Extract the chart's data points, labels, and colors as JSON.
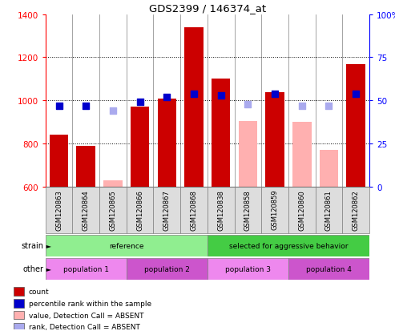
{
  "title": "GDS2399 / 146374_at",
  "samples": [
    "GSM120863",
    "GSM120864",
    "GSM120865",
    "GSM120866",
    "GSM120867",
    "GSM120868",
    "GSM120838",
    "GSM120858",
    "GSM120859",
    "GSM120860",
    "GSM120861",
    "GSM120862"
  ],
  "bar_values": [
    840,
    790,
    null,
    970,
    1010,
    1340,
    1100,
    null,
    1040,
    null,
    null,
    1170
  ],
  "bar_values_absent": [
    null,
    null,
    630,
    null,
    null,
    null,
    null,
    905,
    null,
    900,
    770,
    null
  ],
  "rank_present": [
    47,
    47,
    null,
    49,
    52,
    54,
    53,
    null,
    54,
    null,
    null,
    54
  ],
  "rank_absent": [
    null,
    null,
    44,
    null,
    null,
    null,
    null,
    48,
    null,
    47,
    47,
    null
  ],
  "ylim_left": [
    600,
    1400
  ],
  "ylim_right": [
    0,
    100
  ],
  "yticks_left": [
    600,
    800,
    1000,
    1200,
    1400
  ],
  "yticks_right": [
    0,
    25,
    50,
    75,
    100
  ],
  "grid_values": [
    800,
    1000,
    1200
  ],
  "bar_color_present": "#cc0000",
  "bar_color_absent": "#ffb0b0",
  "rank_color_present": "#0000cc",
  "rank_color_absent": "#aaaaee",
  "strain_ref_color": "#90ee90",
  "strain_agg_color": "#44cc44",
  "pop_color_1": "#ee88ee",
  "pop_color_2": "#cc55cc",
  "strain_groups": [
    {
      "label": "reference",
      "start": 0,
      "end": 6,
      "color": "#90ee90"
    },
    {
      "label": "selected for aggressive behavior",
      "start": 6,
      "end": 12,
      "color": "#44cc44"
    }
  ],
  "other_groups": [
    {
      "label": "population 1",
      "start": 0,
      "end": 3,
      "color": "#ee88ee"
    },
    {
      "label": "population 2",
      "start": 3,
      "end": 6,
      "color": "#cc55cc"
    },
    {
      "label": "population 3",
      "start": 6,
      "end": 9,
      "color": "#ee88ee"
    },
    {
      "label": "population 4",
      "start": 9,
      "end": 12,
      "color": "#cc55cc"
    }
  ],
  "legend_items": [
    {
      "label": "count",
      "color": "#cc0000"
    },
    {
      "label": "percentile rank within the sample",
      "color": "#0000cc"
    },
    {
      "label": "value, Detection Call = ABSENT",
      "color": "#ffb0b0"
    },
    {
      "label": "rank, Detection Call = ABSENT",
      "color": "#aaaaee"
    }
  ]
}
